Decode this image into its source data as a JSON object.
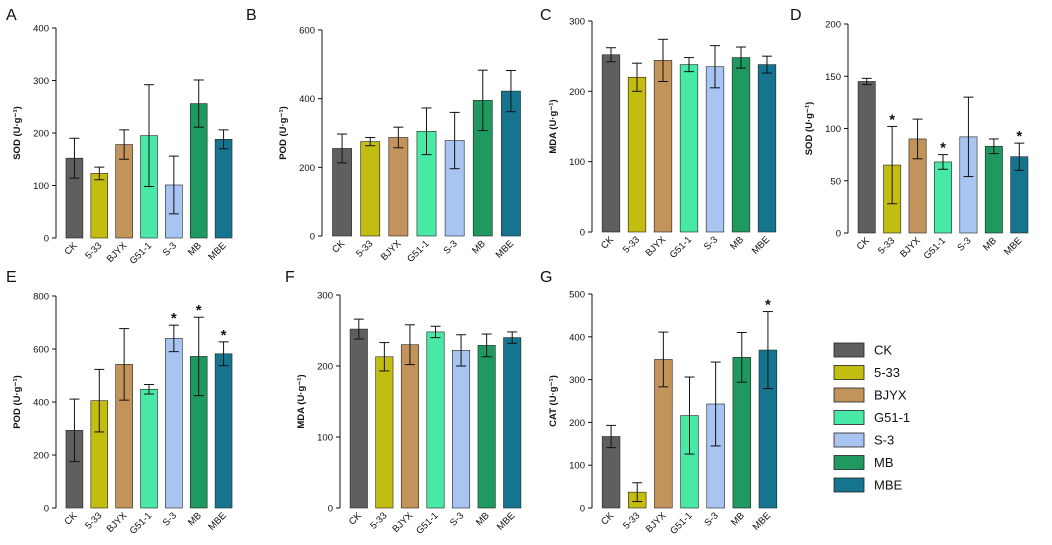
{
  "colors": {
    "CK": "#5f5f5f",
    "5-33": "#c3bd12",
    "BJYX": "#c2935b",
    "G51-1": "#48e9a6",
    "S-3": "#a8c4f1",
    "MB": "#1f9960",
    "MBE": "#15758f"
  },
  "legend": {
    "items": [
      "CK",
      "5-33",
      "BJYX",
      "G51-1",
      "S-3",
      "MB",
      "MBE"
    ]
  },
  "chart_data": [
    {
      "panel": "A",
      "type": "bar",
      "ylabel": "SOD (U·g⁻¹)",
      "ylim": [
        0,
        400
      ],
      "yticks": [
        0,
        100,
        200,
        300,
        400
      ],
      "categories": [
        "CK",
        "5-33",
        "BJYX",
        "G51-1",
        "S-3",
        "MB",
        "MBE"
      ],
      "values": [
        152,
        123,
        178,
        195,
        101,
        256,
        188
      ],
      "errors": [
        38,
        12,
        28,
        97,
        55,
        45,
        18
      ],
      "markers": [
        "",
        "",
        "",
        "",
        "",
        "",
        ""
      ]
    },
    {
      "panel": "B",
      "type": "bar",
      "ylabel": "POD (U·g⁻¹)",
      "ylim": [
        0,
        600
      ],
      "yticks": [
        0,
        200,
        400,
        600
      ],
      "categories": [
        "CK",
        "5-33",
        "BJYX",
        "G51-1",
        "S-3",
        "MB",
        "MBE"
      ],
      "values": [
        255,
        275,
        287,
        305,
        278,
        395,
        422
      ],
      "errors": [
        42,
        12,
        30,
        68,
        82,
        88,
        60
      ],
      "markers": [
        "",
        "",
        "",
        "",
        "",
        "",
        ""
      ]
    },
    {
      "panel": "C",
      "type": "bar",
      "ylabel": "MDA (U·g⁻¹)",
      "ylim": [
        0,
        300
      ],
      "yticks": [
        0,
        100,
        200,
        300
      ],
      "categories": [
        "CK",
        "5-33",
        "BJYX",
        "G51-1",
        "S-3",
        "MB",
        "MBE"
      ],
      "values": [
        252,
        220,
        244,
        238,
        235,
        248,
        238
      ],
      "errors": [
        10,
        20,
        30,
        10,
        30,
        15,
        12
      ],
      "markers": [
        "",
        "",
        "",
        "",
        "",
        "",
        ""
      ]
    },
    {
      "panel": "D",
      "type": "bar",
      "ylabel": "SOD (U·g⁻¹)",
      "ylim": [
        0,
        200
      ],
      "yticks": [
        0,
        50,
        100,
        150,
        200
      ],
      "categories": [
        "CK",
        "5-33",
        "BJYX",
        "G51-1",
        "S-3",
        "MB",
        "MBE"
      ],
      "values": [
        145,
        65,
        90,
        68,
        92,
        83,
        73
      ],
      "errors": [
        3,
        37,
        19,
        7,
        38,
        7,
        13
      ],
      "markers": [
        "",
        "*",
        "",
        "*",
        "",
        "",
        "*"
      ]
    },
    {
      "panel": "E",
      "type": "bar",
      "ylabel": "POD (U·g⁻¹)",
      "ylim": [
        0,
        800
      ],
      "yticks": [
        0,
        200,
        400,
        600,
        800
      ],
      "categories": [
        "CK",
        "5-33",
        "BJYX",
        "G51-1",
        "S-3",
        "MB",
        "MBE"
      ],
      "values": [
        293,
        405,
        542,
        448,
        640,
        572,
        582
      ],
      "errors": [
        118,
        118,
        135,
        18,
        50,
        148,
        45
      ],
      "markers": [
        "",
        "",
        "",
        "",
        "*",
        "*",
        "*"
      ]
    },
    {
      "panel": "F",
      "type": "bar",
      "ylabel": "MDA (U·g⁻¹)",
      "ylim": [
        0,
        300
      ],
      "yticks": [
        0,
        100,
        200,
        300
      ],
      "categories": [
        "CK",
        "5-33",
        "BJYX",
        "G51-1",
        "S-3",
        "MB",
        "MBE"
      ],
      "values": [
        252,
        213,
        230,
        248,
        222,
        229,
        240
      ],
      "errors": [
        14,
        20,
        28,
        8,
        22,
        16,
        8
      ],
      "markers": [
        "",
        "",
        "",
        "",
        "",
        "",
        ""
      ]
    },
    {
      "panel": "G",
      "type": "bar",
      "ylabel": "CAT (U·g⁻¹)",
      "ylim": [
        0,
        500
      ],
      "yticks": [
        0,
        100,
        200,
        300,
        400,
        500
      ],
      "categories": [
        "CK",
        "5-33",
        "BJYX",
        "G51-1",
        "S-3",
        "MB",
        "MBE"
      ],
      "values": [
        167,
        37,
        347,
        216,
        243,
        352,
        369
      ],
      "errors": [
        26,
        22,
        64,
        90,
        98,
        58,
        90
      ],
      "markers": [
        "",
        "",
        "",
        "",
        "",
        "",
        "*"
      ]
    }
  ]
}
